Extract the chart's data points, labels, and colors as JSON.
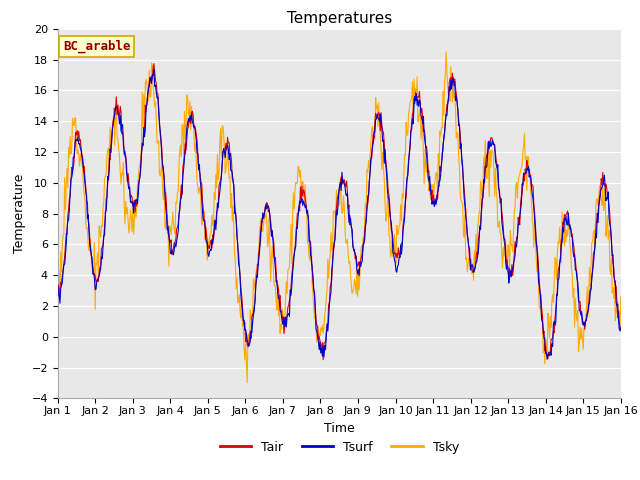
{
  "title": "Temperatures",
  "xlabel": "Time",
  "ylabel": "Temperature",
  "annotation": "BC_arable",
  "ylim": [
    -4,
    20
  ],
  "yticks": [
    -4,
    -2,
    0,
    2,
    4,
    6,
    8,
    10,
    12,
    14,
    16,
    18,
    20
  ],
  "legend_labels": [
    "Tair",
    "Tsurf",
    "Tsky"
  ],
  "tair_color": "#dd0000",
  "tsurf_color": "#0000cc",
  "tsky_color": "#ffaa00",
  "bg_color": "#e8e8e8",
  "linewidth": 0.8,
  "title_fontsize": 11,
  "axis_label_fontsize": 9,
  "tick_fontsize": 8,
  "legend_fontsize": 9,
  "annotation_fontsize": 9,
  "n_days": 15,
  "n_per_day": 48
}
